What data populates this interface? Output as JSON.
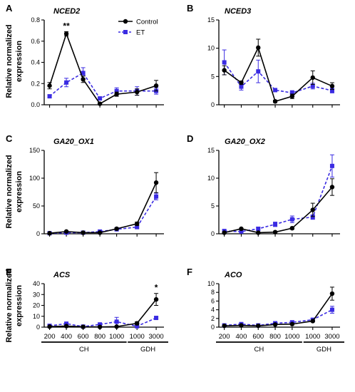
{
  "figure": {
    "y_label_line1": "Relative normalized",
    "y_label_line2": "expression",
    "legend": {
      "control": "Control",
      "et": "ET",
      "position": "top-right of panel A"
    },
    "colors": {
      "control": "#000000",
      "et": "#3a2be2"
    },
    "x_groups": [
      {
        "label": "CH",
        "categories": [
          200,
          400,
          600,
          800,
          1000
        ]
      },
      {
        "label": "GDH",
        "categories": [
          1000,
          3000
        ]
      }
    ]
  },
  "chart_data": [
    {
      "panel": "A",
      "gene": "NCED2",
      "type": "line",
      "x": [
        200,
        400,
        600,
        800,
        1000,
        1000,
        3000
      ],
      "ylim": [
        0,
        0.8
      ],
      "yticks": [
        0.0,
        0.2,
        0.4,
        0.6,
        0.8
      ],
      "series": [
        {
          "name": "Control",
          "values": [
            0.18,
            0.67,
            0.24,
            0.01,
            0.1,
            0.12,
            0.18
          ],
          "errors": [
            0.03,
            0.02,
            0.03,
            0.01,
            0.02,
            0.03,
            0.05
          ]
        },
        {
          "name": "ET",
          "values": [
            0.08,
            0.21,
            0.3,
            0.06,
            0.13,
            0.13,
            0.13
          ],
          "errors": [
            0.01,
            0.04,
            0.05,
            0.01,
            0.03,
            0.04,
            0.03
          ]
        }
      ],
      "annotations": [
        {
          "text": "**",
          "x_index": 1
        }
      ]
    },
    {
      "panel": "B",
      "gene": "NCED3",
      "type": "line",
      "x": [
        200,
        400,
        600,
        800,
        1000,
        1000,
        3000
      ],
      "ylim": [
        0,
        15
      ],
      "yticks": [
        0,
        5,
        10,
        15
      ],
      "series": [
        {
          "name": "Control",
          "values": [
            6.1,
            3.9,
            10.1,
            0.6,
            1.5,
            4.8,
            3.3
          ],
          "errors": [
            0.8,
            0.3,
            1.5,
            0.2,
            0.4,
            1.2,
            0.6
          ]
        },
        {
          "name": "ET",
          "values": [
            7.5,
            3.2,
            5.9,
            2.6,
            2.1,
            3.3,
            2.5
          ],
          "errors": [
            2.2,
            0.6,
            2.0,
            0.3,
            0.4,
            0.5,
            0.4
          ]
        }
      ],
      "annotations": []
    },
    {
      "panel": "C",
      "gene": "GA20_OX1",
      "type": "line",
      "x": [
        200,
        400,
        600,
        800,
        1000,
        1000,
        3000
      ],
      "ylim": [
        0,
        150
      ],
      "yticks": [
        0,
        50,
        100,
        150
      ],
      "series": [
        {
          "name": "Control",
          "values": [
            1,
            4,
            2,
            2,
            9,
            18,
            92
          ],
          "errors": [
            0.5,
            1,
            0.5,
            0.5,
            1.5,
            3,
            18
          ]
        },
        {
          "name": "ET",
          "values": [
            1,
            2,
            2,
            4,
            8,
            12,
            67
          ],
          "errors": [
            0.5,
            0.5,
            0.5,
            1,
            1.5,
            2,
            6
          ]
        }
      ],
      "annotations": []
    },
    {
      "panel": "D",
      "gene": "GA20_OX2",
      "type": "line",
      "x": [
        200,
        400,
        600,
        800,
        1000,
        1000,
        3000
      ],
      "ylim": [
        0,
        15
      ],
      "yticks": [
        0,
        5,
        10,
        15
      ],
      "series": [
        {
          "name": "Control",
          "values": [
            0.2,
            0.9,
            0.2,
            0.3,
            1.0,
            4.3,
            8.4
          ],
          "errors": [
            0.1,
            0.1,
            0.1,
            0.1,
            0.2,
            1.2,
            1.5
          ]
        },
        {
          "name": "ET",
          "values": [
            0.5,
            0.4,
            0.9,
            1.7,
            2.6,
            3.0,
            12.2
          ],
          "errors": [
            0.2,
            0.2,
            0.3,
            0.4,
            0.6,
            0.4,
            2.0
          ]
        }
      ],
      "annotations": []
    },
    {
      "panel": "E",
      "gene": "ACS",
      "type": "line",
      "x": [
        200,
        400,
        600,
        800,
        1000,
        1000,
        3000
      ],
      "ylim": [
        0,
        40
      ],
      "yticks": [
        0,
        10,
        20,
        30,
        40
      ],
      "series": [
        {
          "name": "Control",
          "values": [
            0.5,
            1.0,
            0.3,
            0.2,
            0.5,
            3.5,
            25.5
          ],
          "errors": [
            0.2,
            0.3,
            0.1,
            0.1,
            0.2,
            1.5,
            5.5
          ]
        },
        {
          "name": "ET",
          "values": [
            1.2,
            3.2,
            0.5,
            2.5,
            5.0,
            0.8,
            8.5
          ],
          "errors": [
            0.4,
            0.6,
            0.2,
            0.5,
            4.0,
            0.3,
            1.0
          ]
        }
      ],
      "annotations": [
        {
          "text": "*",
          "x_index": 6
        }
      ]
    },
    {
      "panel": "F",
      "gene": "ACO",
      "type": "line",
      "x": [
        200,
        400,
        600,
        800,
        1000,
        1000,
        3000
      ],
      "ylim": [
        0,
        10
      ],
      "yticks": [
        0,
        2,
        4,
        6,
        8,
        10
      ],
      "series": [
        {
          "name": "Control",
          "values": [
            0.3,
            0.4,
            0.3,
            0.6,
            0.7,
            1.4,
            7.7
          ],
          "errors": [
            0.1,
            0.1,
            0.1,
            0.1,
            0.2,
            0.2,
            1.5
          ]
        },
        {
          "name": "ET",
          "values": [
            0.4,
            0.7,
            0.4,
            0.9,
            1.1,
            1.7,
            4.0
          ],
          "errors": [
            0.1,
            0.2,
            0.1,
            0.2,
            0.4,
            0.3,
            0.8
          ]
        }
      ],
      "annotations": []
    }
  ]
}
